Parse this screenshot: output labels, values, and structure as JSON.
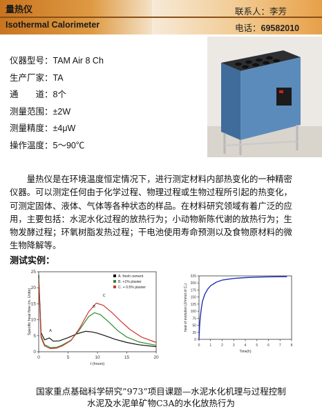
{
  "header": {
    "title_cn": "量热仪",
    "title_en": "Isothermal Calorimeter",
    "contact": "联系人：李芳",
    "phone_label": "电话：",
    "phone_number": "69582010"
  },
  "specs": [
    {
      "label": "仪器型号：",
      "value": "TAM  Air 8 Ch"
    },
    {
      "label": "生产厂家：",
      "value": "TA"
    },
    {
      "label": "通　　道：",
      "value": "8个"
    },
    {
      "label": "测量范围：",
      "value": "±2W"
    },
    {
      "label": "测量精度：",
      "value": "±4μW"
    },
    {
      "label": "操作温度：",
      "value": "5～90℃"
    }
  ],
  "description_lines": [
    "量热仪是在环境温度恒定情况下，进行测定材料内部热变化的一种精密",
    "仪器。可以测定任何由于化学过程、物理过程或生物过程所引起的热变化，",
    "可测定固体、液体、气体等各种状态的样品。在材料研究领域有着广泛的应",
    "用，主要包括：水泥水化过程的放热行为；小动物新陈代谢的放热行为；生",
    "物发酵过程；环氧树脂发热过程；干电池使用寿命预测以及食物原材料的微",
    "生物降解等。"
  ],
  "example_heading": "测试实例：",
  "captions": {
    "line1": "国家重点基础科学研究”973”项目课题—水泥水化机理与过程控制",
    "line2": "水泥及水泥单矿物C3A的水化放热行为"
  },
  "colors": {
    "header_dark": "#c9741f",
    "header_light": "#f4e2c6",
    "instrument_blue": "#4f7fae"
  },
  "chart_data": [
    {
      "type": "line",
      "xlabel": "t (hours)",
      "ylabel": "Specific heat flow (m. Units)",
      "xlim": [
        0,
        20
      ],
      "ylim": [
        0,
        25
      ],
      "xticks": [
        "0",
        "5",
        "10",
        "15",
        "20"
      ],
      "yticks": [
        "0",
        "5",
        "10",
        "15",
        "20",
        "25"
      ],
      "legend": "top-right",
      "series": [
        {
          "name": "A. fresh cement",
          "color": "#111111",
          "x": [
            0,
            0.4,
            1,
            1.8,
            2.5,
            3.5,
            5,
            6.5,
            8,
            9,
            10,
            11.5,
            13,
            15,
            17,
            20
          ],
          "y": [
            24,
            6,
            3.7,
            4.3,
            3.3,
            3.4,
            4.4,
            5.6,
            6.4,
            6.2,
            5.8,
            4.9,
            3.9,
            2.9,
            2.2,
            1.6
          ]
        },
        {
          "name": "B. +1% plaster",
          "color": "#2e8b2e",
          "x": [
            0,
            0.4,
            1,
            2,
            3,
            4,
            5.5,
            7,
            8.5,
            9.5,
            10.5,
            12,
            13.5,
            15,
            17,
            20
          ],
          "y": [
            23,
            5,
            2.2,
            1.3,
            1.4,
            2.1,
            3.6,
            7,
            11,
            12.2,
            11.6,
            9.2,
            6.5,
            4.6,
            3.1,
            2
          ]
        },
        {
          "name": "C. + 0.5% plaster",
          "color": "#d0342c",
          "x": [
            0,
            0.4,
            1,
            2,
            3,
            4,
            5.5,
            7,
            8.5,
            9.8,
            11,
            12.5,
            14,
            15.5,
            17.5,
            20
          ],
          "y": [
            22,
            4.5,
            1.8,
            1.0,
            1.1,
            1.8,
            3.5,
            7.5,
            12.5,
            15.2,
            14.5,
            12.2,
            9.5,
            7,
            4.6,
            2.9
          ]
        }
      ],
      "annotations": [
        "A",
        "B",
        "C"
      ]
    },
    {
      "type": "line",
      "xlabel": "Time(h)",
      "ylabel": "heat of evolution (J/mmol of C₃)",
      "xlim": [
        0,
        8
      ],
      "ylim": [
        0,
        225
      ],
      "xticks": [
        "0",
        "1",
        "2",
        "3",
        "4",
        "5",
        "6",
        "7",
        "8"
      ],
      "yticks": [
        "0",
        "25",
        "50",
        "75",
        "100",
        "125",
        "150",
        "175",
        "200",
        "225"
      ],
      "series": [
        {
          "color": "#1f2fb5",
          "x": [
            0,
            0.05,
            0.1,
            0.2,
            0.3,
            0.5,
            0.75,
            1,
            1.5,
            2,
            3,
            4,
            5,
            6,
            7,
            7.6
          ],
          "y": [
            0,
            45,
            75,
            110,
            135,
            160,
            178,
            190,
            203,
            210,
            216,
            219,
            220.5,
            221.5,
            222,
            222
          ]
        }
      ]
    }
  ]
}
